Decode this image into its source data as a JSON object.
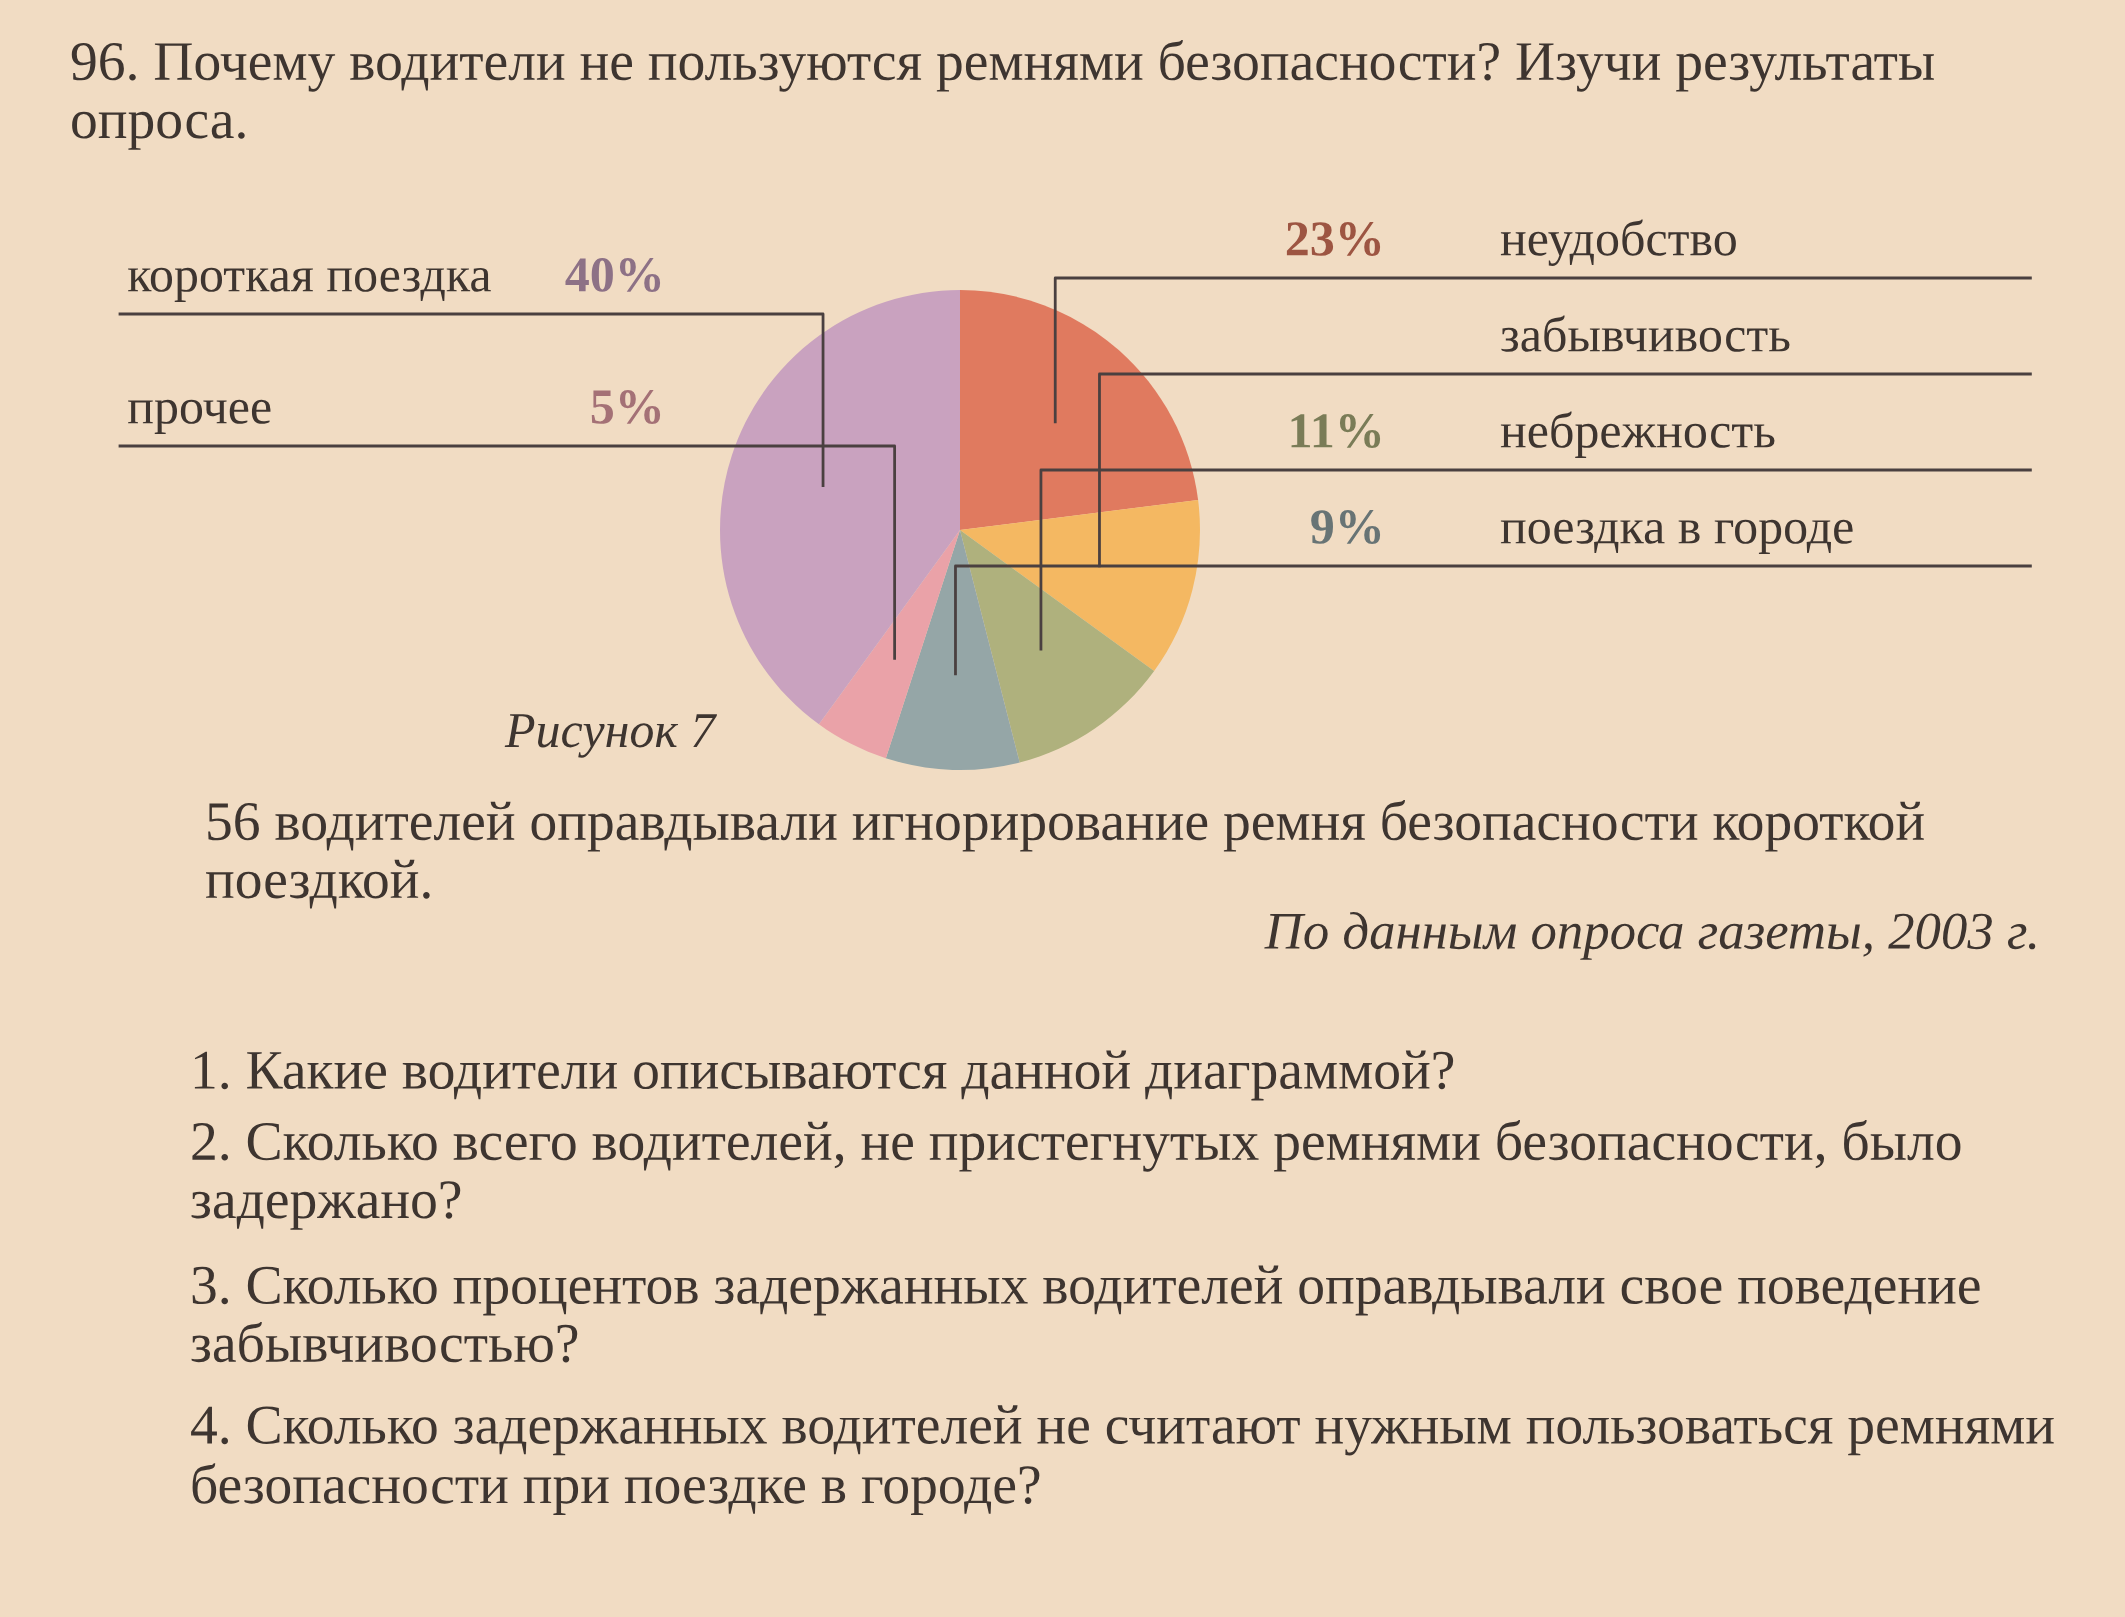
{
  "chart_data": {
    "type": "pie",
    "title": "96. Почему водители не пользуются ремнями безопасности? Изучи результаты опроса.",
    "categories": [
      "неудобство",
      "забывчивость",
      "небрежность",
      "поездка в городе",
      "прочее",
      "короткая поездка"
    ],
    "values": [
      23,
      12,
      11,
      9,
      5,
      40
    ],
    "value_labels": [
      "23%",
      null,
      "11%",
      "9%",
      "5%",
      "40%"
    ],
    "colors": [
      "#e07a5f",
      "#f4b862",
      "#afb17d",
      "#95a6a7",
      "#eaa2a8",
      "#c9a2bf"
    ],
    "annotations": [
      "Рисунок 7",
      "56 водителей оправдывали игнорирование ремня безопасности короткой поездкой.",
      "По данным опроса газеты, 2003 г.",
      "1. Какие водители описываются данной диаграммой?",
      "2. Сколько всего водителей, не пристегнутых ремнями безопасности, было задержано?",
      "3. Сколько процентов задержанных водителей оправдывали свое поведение забывчивостью?",
      "4. Сколько задержанных водителей не считают нужным пользоваться ремнями безопасности при поездке в городе?"
    ]
  }
}
